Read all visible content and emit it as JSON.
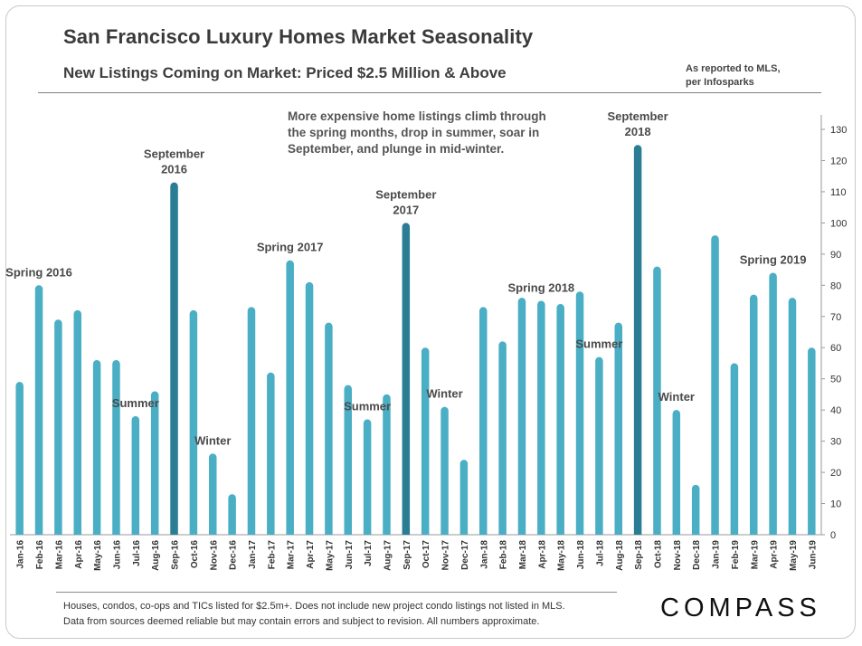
{
  "header": {
    "title": "San Francisco Luxury Homes Market Seasonality",
    "subtitle": "New Listings Coming on Market: Priced $2.5 Million & Above",
    "source_line1": "As reported to MLS,",
    "source_line2": "per Infosparks"
  },
  "callout": {
    "line1": "More expensive home listings climb through",
    "line2": "the spring months, drop in summer, soar in",
    "line3": "September, and plunge in mid-winter."
  },
  "footer": {
    "note_line1": "Houses, condos, co-ops and TICs listed for $2.5m+. Does not include new project condo listings not listed in MLS.",
    "note_line2": "Data from sources deemed reliable but may contain errors and subject to revision.  All numbers approximate.",
    "logo": "COMPASS"
  },
  "colors": {
    "bar": "#4aaec4",
    "bar_highlight": "#2a7d93",
    "axis": "#999999"
  },
  "chart_data": {
    "type": "bar",
    "categories": [
      "Jan-16",
      "Feb-16",
      "Mar-16",
      "Apr-16",
      "May-16",
      "Jun-16",
      "Jul-16",
      "Aug-16",
      "Sep-16",
      "Oct-16",
      "Nov-16",
      "Dec-16",
      "Jan-17",
      "Feb-17",
      "Mar-17",
      "Apr-17",
      "May-17",
      "Jun-17",
      "Jul-17",
      "Aug-17",
      "Sep-17",
      "Oct-17",
      "Nov-17",
      "Dec-17",
      "Jan-18",
      "Feb-18",
      "Mar-18",
      "Apr-18",
      "May-18",
      "Jun-18",
      "Jul-18",
      "Aug-18",
      "Sep-18",
      "Oct-18",
      "Nov-18",
      "Dec-18",
      "Jan-19",
      "Feb-19",
      "Mar-19",
      "Apr-19",
      "May-19",
      "Jun-19"
    ],
    "values": [
      49,
      80,
      69,
      72,
      56,
      56,
      38,
      46,
      113,
      72,
      26,
      13,
      73,
      52,
      88,
      81,
      68,
      48,
      37,
      45,
      100,
      60,
      41,
      24,
      73,
      62,
      76,
      75,
      74,
      78,
      57,
      68,
      125,
      86,
      40,
      16,
      96,
      55,
      77,
      84,
      76,
      60
    ],
    "highlight": [
      "Sep-16",
      "Sep-17",
      "Sep-18"
    ],
    "ylim": [
      0,
      130
    ],
    "yticks": [
      0,
      10,
      20,
      30,
      40,
      50,
      60,
      70,
      80,
      90,
      100,
      110,
      120,
      130
    ],
    "axis_side": "right",
    "annotations": [
      {
        "category": "Feb-16",
        "lines": [
          "Spring 2016"
        ]
      },
      {
        "category": "Jul-16",
        "lines": [
          "Summer"
        ]
      },
      {
        "category": "Sep-16",
        "lines": [
          "September",
          "2016"
        ]
      },
      {
        "category": "Nov-16",
        "lines": [
          "Winter"
        ]
      },
      {
        "category": "Mar-17",
        "lines": [
          "Spring 2017"
        ]
      },
      {
        "category": "Jul-17",
        "lines": [
          "Summer"
        ]
      },
      {
        "category": "Sep-17",
        "lines": [
          "September",
          "2017"
        ]
      },
      {
        "category": "Nov-17",
        "lines": [
          "Winter"
        ]
      },
      {
        "category": "Apr-18",
        "lines": [
          "Spring 2018"
        ]
      },
      {
        "category": "Jul-18",
        "lines": [
          "Summer"
        ]
      },
      {
        "category": "Sep-18",
        "lines": [
          "September",
          "2018"
        ]
      },
      {
        "category": "Nov-18",
        "lines": [
          "Winter"
        ]
      },
      {
        "category": "Apr-19",
        "lines": [
          "Spring 2019"
        ]
      }
    ]
  }
}
